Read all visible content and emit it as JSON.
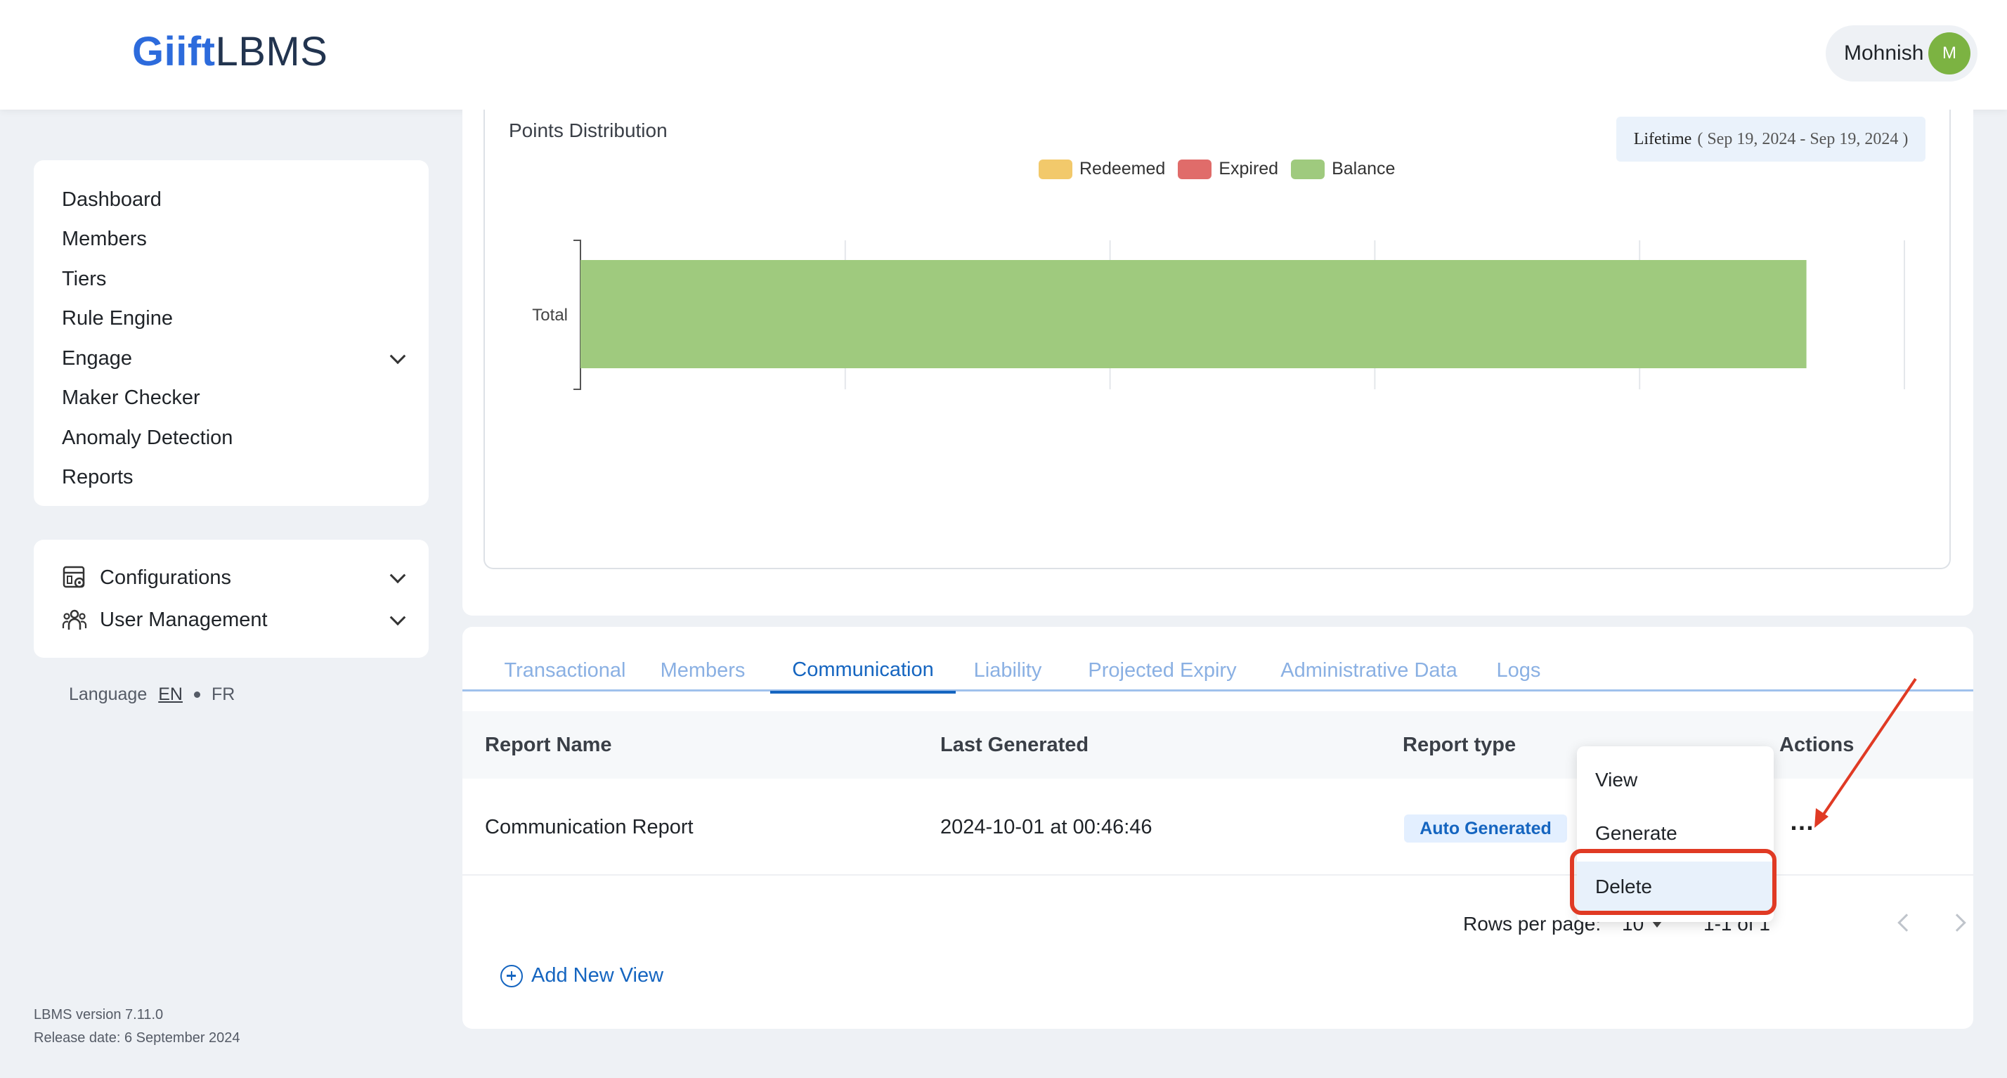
{
  "app": {
    "logo_bold": "Giift",
    "logo_regular": "LBMS"
  },
  "user": {
    "name": "Mohnish",
    "initial": "M"
  },
  "sidebar": {
    "items": [
      {
        "label": "Dashboard"
      },
      {
        "label": "Members"
      },
      {
        "label": "Tiers"
      },
      {
        "label": "Rule Engine"
      },
      {
        "label": "Engage"
      },
      {
        "label": "Maker Checker"
      },
      {
        "label": "Anomaly Detection"
      },
      {
        "label": "Reports"
      }
    ],
    "config_items": [
      {
        "label": "Configurations",
        "icon": "configurations-icon"
      },
      {
        "label": "User Management",
        "icon": "user-management-icon"
      }
    ],
    "language": {
      "label": "Language",
      "en": "EN",
      "fr": "FR"
    },
    "version": "LBMS version 7.11.0",
    "release": "Release date: 6 September 2024"
  },
  "chart": {
    "title": "Points Distribution",
    "lifetime_label": "Lifetime",
    "lifetime_range": "( Sep 19, 2024 - Sep 19, 2024 )"
  },
  "chart_data": {
    "type": "bar",
    "orientation": "horizontal",
    "title": "Points Distribution",
    "categories": [
      "Total"
    ],
    "series": [
      {
        "name": "Redeemed",
        "color": "#f2c96b",
        "values": [
          0
        ]
      },
      {
        "name": "Expired",
        "color": "#e06c6a",
        "values": [
          0
        ]
      },
      {
        "name": "Balance",
        "color": "#9fca7e",
        "values": [
          4.63
        ]
      }
    ],
    "xlim": [
      0,
      5
    ],
    "grid": true,
    "legend": "top-center"
  },
  "reports": {
    "tabs": [
      "Transactional",
      "Members",
      "Communication",
      "Liability",
      "Projected Expiry",
      "Administrative Data",
      "Logs"
    ],
    "active_tab": "Communication",
    "columns": {
      "name": "Report Name",
      "last_generated": "Last Generated",
      "type": "Report type",
      "actions": "Actions"
    },
    "rows": [
      {
        "name": "Communication Report",
        "last_generated": "2024-10-01 at 00:46:46",
        "type": "Auto Generated",
        "actions_icon": "…"
      }
    ],
    "pagination": {
      "rows_per_page_label": "Rows per page:",
      "rows_per_page_value": "10",
      "range": "1-1 of 1"
    },
    "add_view": "Add New View"
  },
  "menu": {
    "items": [
      "View",
      "Generate",
      "Delete"
    ],
    "highlighted": "Delete"
  }
}
